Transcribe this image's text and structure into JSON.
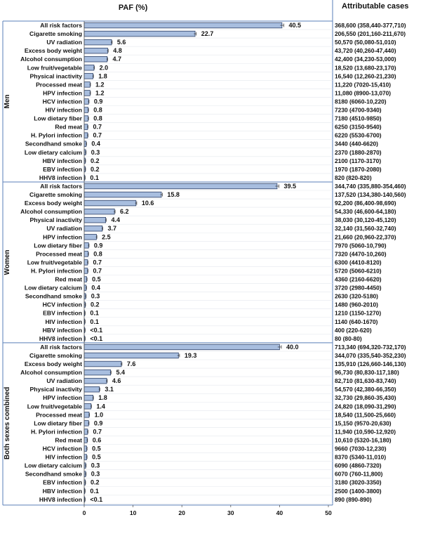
{
  "chart_data": {
    "type": "bar",
    "orientation": "horizontal",
    "title": "PAF (%)",
    "right_column_header": "Attributable cases",
    "xlim": [
      0,
      50
    ],
    "xticks": [
      0,
      10,
      20,
      30,
      40,
      50
    ],
    "groups": [
      {
        "name": "Men",
        "categories": [
          "All risk factors",
          "Cigarette smoking",
          "UV radiation",
          "Excess body weight",
          "Alcohol consumption",
          "Low fruit/vegetable",
          "Physical inactivity",
          "Processed meat",
          "HPV infection",
          "HCV infection",
          "HIV infection",
          "Low dietary fiber",
          "Red meat",
          "H. Pylori infection",
          "Secondhand smoke",
          "Low dietary calcium",
          "HBV infection",
          "EBV infection",
          "HHV8 infection"
        ],
        "values": [
          40.5,
          22.7,
          5.6,
          4.8,
          4.7,
          2.0,
          1.8,
          1.2,
          1.2,
          0.9,
          0.8,
          0.8,
          0.7,
          0.7,
          0.4,
          0.3,
          0.2,
          0.2,
          0.1
        ],
        "labels": [
          "40.5",
          "22.7",
          "5.6",
          "4.8",
          "4.7",
          "2.0",
          "1.8",
          "1.2",
          "1.2",
          "0.9",
          "0.8",
          "0.8",
          "0.7",
          "0.7",
          "0.4",
          "0.3",
          "0.2",
          "0.2",
          "0.1"
        ],
        "cases": [
          "368,600 (358,440-377,710)",
          "206,550 (201,160-211,670)",
          "50,570 (50,080-51,010)",
          "43,720 (40,260-47,440)",
          "42,400 (34,230-53,000)",
          "18,520 (13,680-23,170)",
          "16,540 (12,260-21,230)",
          "11,220 (7020-15,410)",
          "11,080 (8900-13,070)",
          "8180 (6060-10,220)",
          "7230 (4700-9340)",
          "7180 (4510-9850)",
          "6250 (3150-9540)",
          "6220 (5530-6700)",
          "3440 (440-6620)",
          "2370 (1880-2870)",
          "2100 (1170-3170)",
          "1970 (1870-2080)",
          "820 (820-820)"
        ]
      },
      {
        "name": "Women",
        "categories": [
          "All risk factors",
          "Cigarette smoking",
          "Excess body weight",
          "Alcohol consumption",
          "Physical inactivity",
          "UV radiation",
          "HPV infection",
          "Low dietary fiber",
          "Processed meat",
          "Low fruit/vegetable",
          "H. Pylori infection",
          "Red meat",
          "Low dietary calcium",
          "Secondhand smoke",
          "HCV infection",
          "EBV infection",
          "HIV infection",
          "HBV infection",
          "HHV8 infection"
        ],
        "values": [
          39.5,
          15.8,
          10.6,
          6.2,
          4.4,
          3.7,
          2.5,
          0.9,
          0.8,
          0.7,
          0.7,
          0.5,
          0.4,
          0.3,
          0.2,
          0.1,
          0.1,
          0.05,
          0.05
        ],
        "labels": [
          "39.5",
          "15.8",
          "10.6",
          "6.2",
          "4.4",
          "3.7",
          "2.5",
          "0.9",
          "0.8",
          "0.7",
          "0.7",
          "0.5",
          "0.4",
          "0.3",
          "0.2",
          "0.1",
          "0.1",
          "<0.1",
          "<0.1"
        ],
        "cases": [
          "344,740 (335,880-354,460)",
          "137,520 (134,380-140,560)",
          "92,200 (86,400-98,690)",
          "54,330 (46,600-64,180)",
          "38,030 (30,120-45,120)",
          "32,140 (31,560-32,740)",
          "21,660 (20,960-22,370)",
          "7970 (5060-10,790)",
          "7320 (4470-10,260)",
          "6300 (4410-8120)",
          "5720 (5060-6210)",
          "4360 (2160-6620)",
          "3720 (2980-4450)",
          "2630 (320-5180)",
          "1480 (960-2010)",
          "1210 (1150-1270)",
          "1140 (640-1670)",
          "400 (220-620)",
          "80 (80-80)"
        ]
      },
      {
        "name": "Both sexes combined",
        "categories": [
          "All risk factors",
          "Cigarette smoking",
          "Excess body weight",
          "Alcohol consumption",
          "UV radiation",
          "Physical inactivity",
          "HPV infection",
          "Low fruit/vegetable",
          "Processed meat",
          "Low dietary fiber",
          "H. Pylori infection",
          "Red meat",
          "HCV infection",
          "HIV infection",
          "Low dietary calcium",
          "Secondhand smoke",
          "EBV infection",
          "HBV infection",
          "HHV8 infection"
        ],
        "values": [
          40.0,
          19.3,
          7.6,
          5.4,
          4.6,
          3.1,
          1.8,
          1.4,
          1.0,
          0.9,
          0.7,
          0.6,
          0.5,
          0.5,
          0.3,
          0.3,
          0.2,
          0.1,
          0.05
        ],
        "labels": [
          "40.0",
          "19.3",
          "7.6",
          "5.4",
          "4.6",
          "3.1",
          "1.8",
          "1.4",
          "1.0",
          "0.9",
          "0.7",
          "0.6",
          "0.5",
          "0.5",
          "0.3",
          "0.3",
          "0.2",
          "0.1",
          "<0.1"
        ],
        "cases": [
          "713,340 (694,320-732,170)",
          "344,070 (335,540-352,230)",
          "135,910 (126,660-146,130)",
          "96,730 (80,830-117,180)",
          "82,710 (81,630-83,740)",
          "54,570 (42,380-66,350)",
          "32,730 (29,860-35,430)",
          "24,820 (18,090-31,290)",
          "18,540 (11,500-25,660)",
          "15,150 (9570-20,630)",
          "11,940 (10,590-12,920)",
          "10,610 (5320-16,180)",
          "9660 (7030-12,230)",
          "8370 (5340-11,010)",
          "6090 (4860-7320)",
          "6070 (760-11,800)",
          "3180 (3020-3350)",
          "2500 (1400-3800)",
          "890 (890-890)"
        ]
      }
    ]
  },
  "colors": {
    "bar_fill": "#a8bedf",
    "bar_stroke": "#2b3f66",
    "frame": "#5a7fb8"
  }
}
